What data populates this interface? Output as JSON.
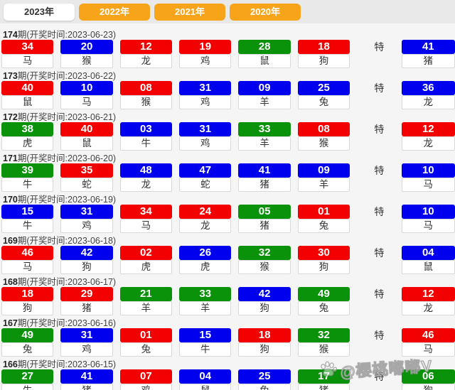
{
  "page": {
    "background": "#f5f5f5",
    "header_background": "#e9e9e9"
  },
  "colors": {
    "red": "#f30000",
    "blue": "#0000ee",
    "green": "#0a930a",
    "orange": "#f8a41b"
  },
  "tabs": [
    {
      "label": "2023年",
      "active": true
    },
    {
      "label": "2022年",
      "active": false
    },
    {
      "label": "2021年",
      "active": false
    },
    {
      "label": "2020年",
      "active": false
    }
  ],
  "special_label": "特",
  "watermark": {
    "icon": "paw-icon",
    "text": "@樱桃嘟嘟V"
  },
  "rows": [
    {
      "period": "174",
      "info": "期(开奖时间:2023-06-23)",
      "numbers": [
        {
          "value": "34",
          "color": "red",
          "zodiac": "马"
        },
        {
          "value": "20",
          "color": "blue",
          "zodiac": "猴"
        },
        {
          "value": "12",
          "color": "red",
          "zodiac": "龙"
        },
        {
          "value": "19",
          "color": "red",
          "zodiac": "鸡"
        },
        {
          "value": "28",
          "color": "green",
          "zodiac": "鼠"
        },
        {
          "value": "18",
          "color": "red",
          "zodiac": "狗"
        }
      ],
      "special": {
        "value": "41",
        "color": "blue",
        "zodiac": "猪"
      }
    },
    {
      "period": "173",
      "info": "期(开奖时间:2023-06-22)",
      "numbers": [
        {
          "value": "40",
          "color": "red",
          "zodiac": "鼠"
        },
        {
          "value": "10",
          "color": "blue",
          "zodiac": "马"
        },
        {
          "value": "08",
          "color": "red",
          "zodiac": "猴"
        },
        {
          "value": "31",
          "color": "blue",
          "zodiac": "鸡"
        },
        {
          "value": "09",
          "color": "blue",
          "zodiac": "羊"
        },
        {
          "value": "25",
          "color": "blue",
          "zodiac": "兔"
        }
      ],
      "special": {
        "value": "36",
        "color": "blue",
        "zodiac": "龙"
      }
    },
    {
      "period": "172",
      "info": "期(开奖时间:2023-06-21)",
      "numbers": [
        {
          "value": "38",
          "color": "green",
          "zodiac": "虎"
        },
        {
          "value": "40",
          "color": "red",
          "zodiac": "鼠"
        },
        {
          "value": "03",
          "color": "blue",
          "zodiac": "牛"
        },
        {
          "value": "31",
          "color": "blue",
          "zodiac": "鸡"
        },
        {
          "value": "33",
          "color": "green",
          "zodiac": "羊"
        },
        {
          "value": "08",
          "color": "red",
          "zodiac": "猴"
        }
      ],
      "special": {
        "value": "12",
        "color": "red",
        "zodiac": "龙"
      }
    },
    {
      "period": "171",
      "info": "期(开奖时间:2023-06-20)",
      "numbers": [
        {
          "value": "39",
          "color": "green",
          "zodiac": "牛"
        },
        {
          "value": "35",
          "color": "red",
          "zodiac": "蛇"
        },
        {
          "value": "48",
          "color": "blue",
          "zodiac": "龙"
        },
        {
          "value": "47",
          "color": "blue",
          "zodiac": "蛇"
        },
        {
          "value": "41",
          "color": "blue",
          "zodiac": "猪"
        },
        {
          "value": "09",
          "color": "blue",
          "zodiac": "羊"
        }
      ],
      "special": {
        "value": "10",
        "color": "blue",
        "zodiac": "马"
      }
    },
    {
      "period": "170",
      "info": "期(开奖时间:2023-06-19)",
      "numbers": [
        {
          "value": "15",
          "color": "blue",
          "zodiac": "牛"
        },
        {
          "value": "31",
          "color": "blue",
          "zodiac": "鸡"
        },
        {
          "value": "34",
          "color": "red",
          "zodiac": "马"
        },
        {
          "value": "24",
          "color": "red",
          "zodiac": "龙"
        },
        {
          "value": "05",
          "color": "green",
          "zodiac": "猪"
        },
        {
          "value": "01",
          "color": "red",
          "zodiac": "兔"
        }
      ],
      "special": {
        "value": "10",
        "color": "blue",
        "zodiac": "马"
      }
    },
    {
      "period": "169",
      "info": "期(开奖时间:2023-06-18)",
      "numbers": [
        {
          "value": "46",
          "color": "red",
          "zodiac": "马"
        },
        {
          "value": "42",
          "color": "blue",
          "zodiac": "狗"
        },
        {
          "value": "02",
          "color": "red",
          "zodiac": "虎"
        },
        {
          "value": "26",
          "color": "blue",
          "zodiac": "虎"
        },
        {
          "value": "32",
          "color": "green",
          "zodiac": "猴"
        },
        {
          "value": "30",
          "color": "red",
          "zodiac": "狗"
        }
      ],
      "special": {
        "value": "04",
        "color": "blue",
        "zodiac": "鼠"
      }
    },
    {
      "period": "168",
      "info": "期(开奖时间:2023-06-17)",
      "numbers": [
        {
          "value": "18",
          "color": "red",
          "zodiac": "狗"
        },
        {
          "value": "29",
          "color": "red",
          "zodiac": "猪"
        },
        {
          "value": "21",
          "color": "green",
          "zodiac": "羊"
        },
        {
          "value": "33",
          "color": "green",
          "zodiac": "羊"
        },
        {
          "value": "42",
          "color": "blue",
          "zodiac": "狗"
        },
        {
          "value": "49",
          "color": "green",
          "zodiac": "兔"
        }
      ],
      "special": {
        "value": "12",
        "color": "red",
        "zodiac": "龙"
      }
    },
    {
      "period": "167",
      "info": "期(开奖时间:2023-06-16)",
      "numbers": [
        {
          "value": "49",
          "color": "green",
          "zodiac": "兔"
        },
        {
          "value": "31",
          "color": "blue",
          "zodiac": "鸡"
        },
        {
          "value": "01",
          "color": "red",
          "zodiac": "兔"
        },
        {
          "value": "15",
          "color": "blue",
          "zodiac": "牛"
        },
        {
          "value": "18",
          "color": "red",
          "zodiac": "狗"
        },
        {
          "value": "32",
          "color": "green",
          "zodiac": "猴"
        }
      ],
      "special": {
        "value": "46",
        "color": "red",
        "zodiac": "马"
      }
    },
    {
      "period": "166",
      "info": "期(开奖时间:2023-06-15)",
      "numbers": [
        {
          "value": "27",
          "color": "green",
          "zodiac": "牛"
        },
        {
          "value": "41",
          "color": "blue",
          "zodiac": "猪"
        },
        {
          "value": "07",
          "color": "red",
          "zodiac": "鸡"
        },
        {
          "value": "04",
          "color": "blue",
          "zodiac": "鼠"
        },
        {
          "value": "25",
          "color": "blue",
          "zodiac": "兔"
        },
        {
          "value": "17",
          "color": "green",
          "zodiac": "猪"
        }
      ],
      "special": {
        "value": "06",
        "color": "green",
        "zodiac": "狗"
      }
    }
  ]
}
